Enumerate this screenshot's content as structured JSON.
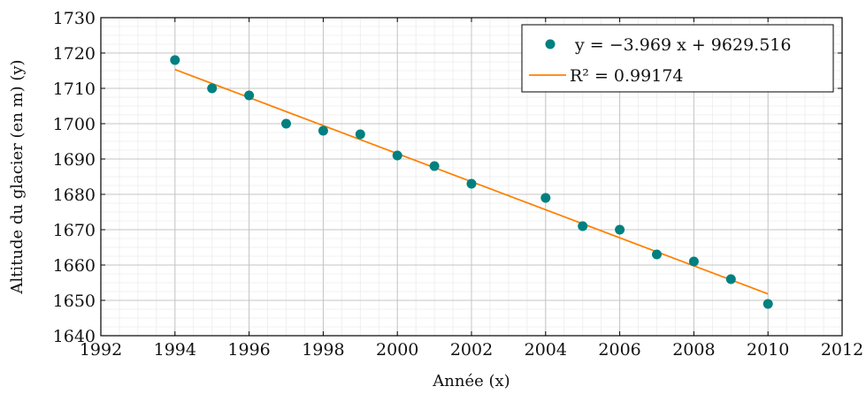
{
  "chart_data": {
    "type": "scatter",
    "xlabel": "Année (x)",
    "ylabel": "Altitude du glacier (en m) (y)",
    "xlim": [
      1992,
      2012
    ],
    "ylim": [
      1640,
      1730
    ],
    "x_ticks": [
      1992,
      1994,
      1996,
      1998,
      2000,
      2002,
      2004,
      2006,
      2008,
      2010,
      2012
    ],
    "y_ticks": [
      1640,
      1650,
      1660,
      1670,
      1680,
      1690,
      1700,
      1710,
      1720,
      1730
    ],
    "grid": true,
    "legend_position": "top-right",
    "series": [
      {
        "type": "scatter",
        "name": "y = −3.969 x + 9629.516",
        "color": "#008080",
        "x": [
          1994,
          1995,
          1996,
          1997,
          1998,
          1999,
          2000,
          2001,
          2002,
          2004,
          2005,
          2006,
          2007,
          2008,
          2009,
          2010
        ],
        "y": [
          1718,
          1710,
          1708,
          1700,
          1698,
          1697,
          1691,
          1688,
          1683,
          1679,
          1671,
          1670,
          1663,
          1661,
          1656,
          1649
        ]
      },
      {
        "type": "line",
        "name": "R² = 0.99174",
        "color": "#ff8000",
        "slope": -3.969,
        "intercept": 9629.516,
        "x_range": [
          1994,
          2010
        ]
      }
    ]
  }
}
